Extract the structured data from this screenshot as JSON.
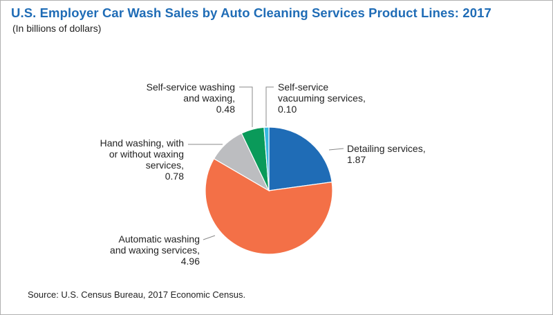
{
  "title": "U.S. Employer Car Wash Sales by Auto Cleaning Services Product Lines: 2017",
  "subtitle": "(In billions of dollars)",
  "source": "Source: U.S. Census Bureau, 2017 Economic Census.",
  "chart_data": {
    "type": "pie",
    "title": "U.S. Employer Car Wash Sales by Auto Cleaning Services Product Lines: 2017",
    "subtitle": "(In billions of dollars)",
    "unit": "billions of dollars",
    "slices": [
      {
        "label": "Detailing services,",
        "value": 1.87,
        "value_label": "1.87",
        "color": "#1f6cb6",
        "label_lines": [
          "Detailing services,",
          "1.87"
        ]
      },
      {
        "label": "Automatic washing and waxing services,",
        "value": 4.96,
        "value_label": "4.96",
        "color": "#f37047",
        "label_lines": [
          "Automatic washing",
          "and waxing services,",
          "4.96"
        ]
      },
      {
        "label": "Hand washing, with or without waxing services,",
        "value": 0.78,
        "value_label": "0.78",
        "color": "#bcbdc0",
        "label_lines": [
          "Hand washing, with",
          "or without waxing",
          "services,",
          "0.78"
        ]
      },
      {
        "label": "Self-service washing and waxing,",
        "value": 0.48,
        "value_label": "0.48",
        "color": "#0a9a5a",
        "label_lines": [
          "Self-service washing",
          "and waxing,",
          "0.48"
        ]
      },
      {
        "label": "Self-service vacuuming services,",
        "value": 0.1,
        "value_label": "0.10",
        "color": "#35b8e0",
        "label_lines": [
          "Self-service",
          "vacuuming services,",
          "0.10"
        ]
      }
    ]
  }
}
